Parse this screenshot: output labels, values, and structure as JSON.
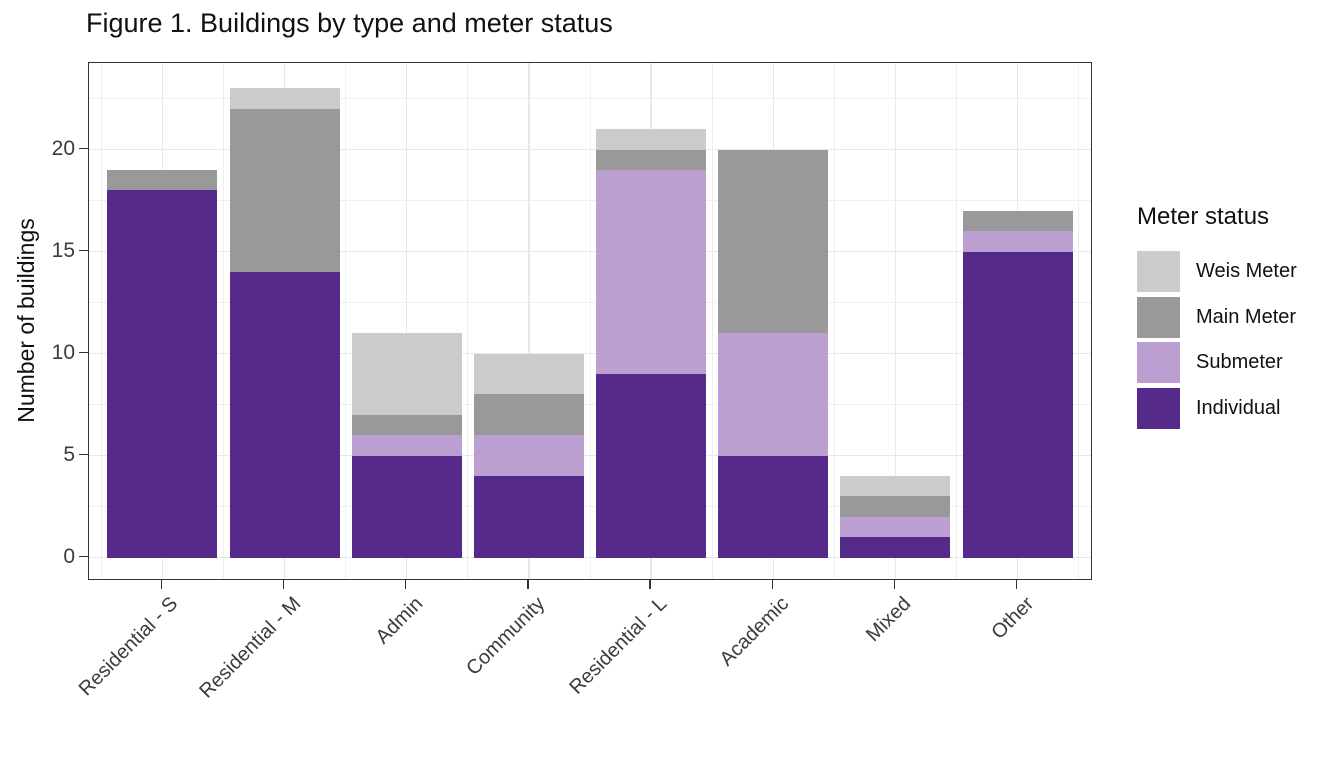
{
  "title": "Figure 1. Buildings by type and meter status",
  "chart_data": {
    "type": "bar",
    "stacked": true,
    "title": "Figure 1. Buildings by type and meter status",
    "xlabel": "",
    "ylabel": "Number of buildings",
    "categories": [
      "Residential - S",
      "Residential - M",
      "Admin",
      "Community",
      "Residential - L",
      "Academic",
      "Mixed",
      "Other"
    ],
    "series": [
      {
        "name": "Individual",
        "color": "#552a8b",
        "values": [
          18,
          14,
          5,
          4,
          9,
          5,
          1,
          15
        ]
      },
      {
        "name": "Submeter",
        "color": "#bb9fd0",
        "values": [
          0,
          0,
          1,
          2,
          10,
          6,
          1,
          1
        ]
      },
      {
        "name": "Main Meter",
        "color": "#999999",
        "values": [
          1,
          8,
          1,
          2,
          1,
          9,
          1,
          1
        ]
      },
      {
        "name": "Weis Meter",
        "color": "#cbcbcb",
        "values": [
          0,
          1,
          4,
          2,
          1,
          0,
          1,
          0
        ]
      }
    ],
    "totals": [
      19,
      23,
      11,
      10,
      21,
      20,
      4,
      17
    ],
    "ylim": [
      0,
      23
    ],
    "yticks": [
      0,
      5,
      10,
      15,
      20
    ],
    "grid": true,
    "legend_title": "Meter status",
    "legend_position": "right",
    "legend_order": [
      "Weis Meter",
      "Main Meter",
      "Submeter",
      "Individual"
    ],
    "x_label_angle": 45
  },
  "colors": {
    "panel_border": "#333333",
    "grid_major": "#e8e8e8",
    "grid_minor": "#efefef",
    "tick_text": "#3c3c3c",
    "title_text": "#111111"
  }
}
